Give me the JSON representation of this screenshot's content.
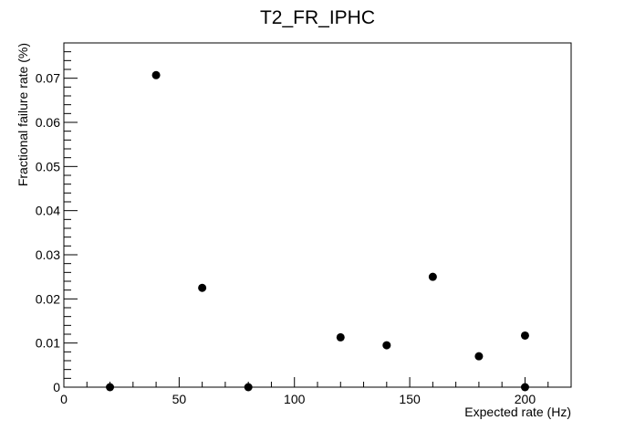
{
  "chart_data": {
    "type": "scatter",
    "title": "T2_FR_IPHC",
    "xlabel": "Expected rate (Hz)",
    "ylabel": "Fractional failure rate (%)",
    "xlim": [
      0,
      220
    ],
    "ylim": [
      0,
      0.078
    ],
    "grid": false,
    "x_ticks": [
      0,
      50,
      100,
      150,
      200
    ],
    "x_tick_labels": [
      "0",
      "50",
      "100",
      "150",
      "200"
    ],
    "y_ticks": [
      0,
      0.01,
      0.02,
      0.03,
      0.04,
      0.05,
      0.06,
      0.07
    ],
    "y_tick_labels": [
      "0",
      "0.01",
      "0.02",
      "0.03",
      "0.04",
      "0.05",
      "0.06",
      "0.07"
    ],
    "series": [
      {
        "x": [
          20,
          40,
          60,
          80,
          120,
          140,
          160,
          180,
          200,
          200
        ],
        "y": [
          0,
          0.0707,
          0.0225,
          0,
          0.0113,
          0.0095,
          0.025,
          0.007,
          0.0117,
          0
        ],
        "color": "#000000"
      }
    ]
  }
}
